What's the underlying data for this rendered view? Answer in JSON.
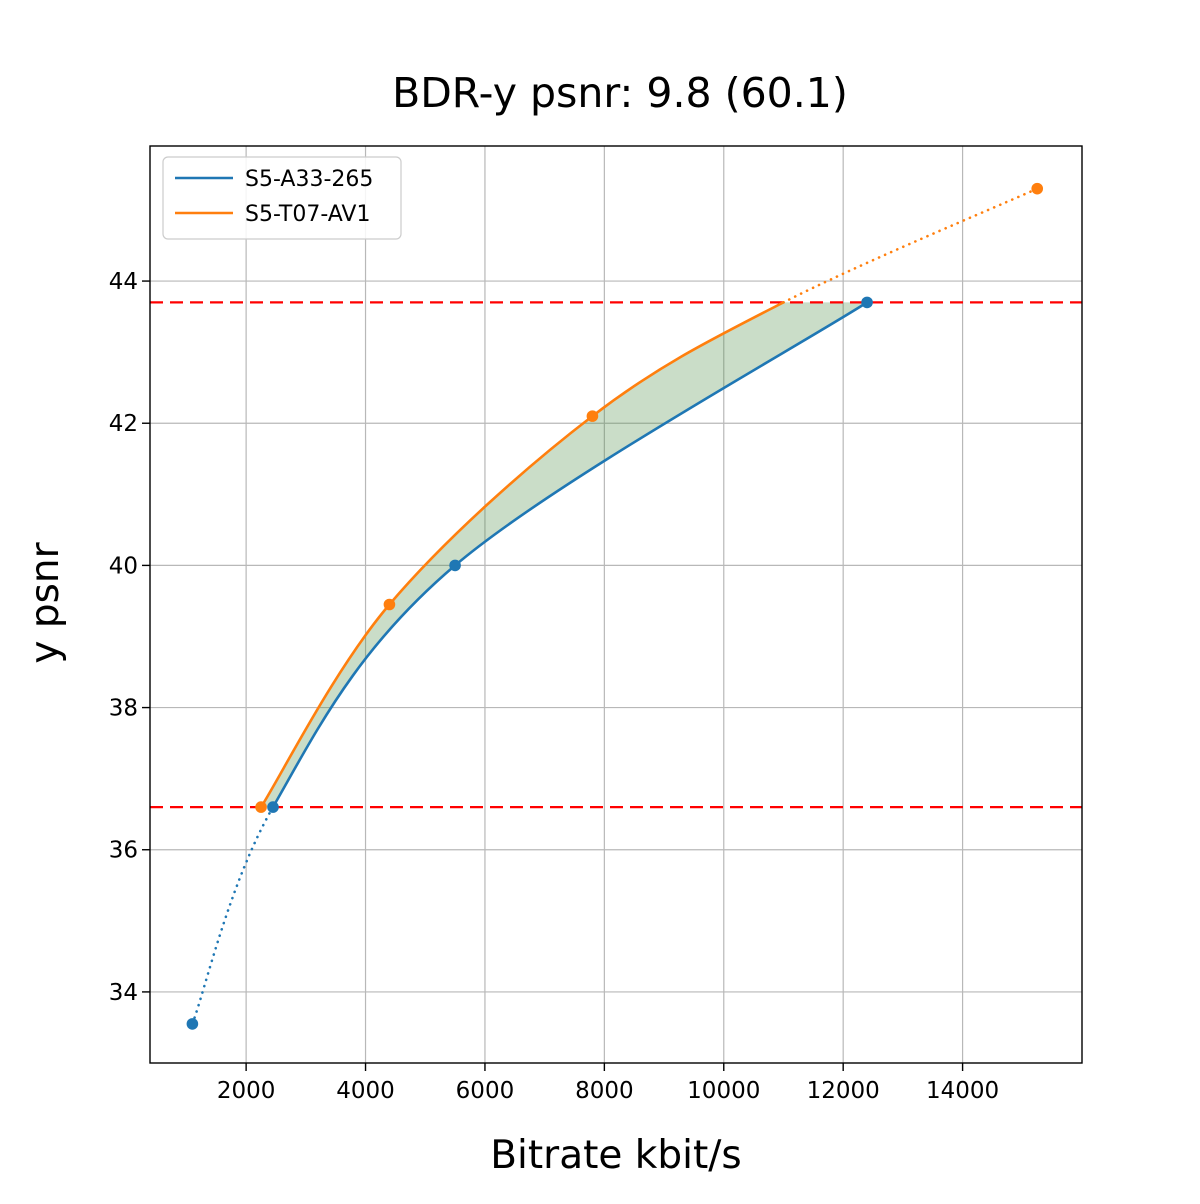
{
  "chart_data": {
    "type": "line",
    "title": "BDR-y psnr: 9.8 (60.1)",
    "xlabel": "Bitrate kbit/s",
    "ylabel": "y psnr",
    "xlim": [
      390,
      16000
    ],
    "ylim": [
      33.0,
      45.9
    ],
    "xticks": [
      2000,
      4000,
      6000,
      8000,
      10000,
      12000,
      14000
    ],
    "yticks": [
      34,
      36,
      38,
      40,
      42,
      44
    ],
    "grid": true,
    "legend": {
      "position": "upper-left"
    },
    "series": [
      {
        "name": "S5-A33-265",
        "color": "#1f77b4",
        "curve_points": [
          [
            1100,
            33.55
          ],
          [
            2450,
            36.6
          ],
          [
            5500,
            40.0
          ],
          [
            12400,
            43.7
          ]
        ],
        "marker_points": [
          [
            1100,
            33.55
          ],
          [
            2450,
            36.6
          ],
          [
            5500,
            40.0
          ],
          [
            12400,
            43.7
          ]
        ],
        "dotted_segments": [
          0
        ]
      },
      {
        "name": "S5-T07-AV1",
        "color": "#ff7f0e",
        "curve_points": [
          [
            2250,
            36.6
          ],
          [
            4400,
            39.45
          ],
          [
            7800,
            42.1
          ],
          [
            11000,
            43.7
          ],
          [
            15250,
            45.3
          ]
        ],
        "marker_points": [
          [
            2250,
            36.6
          ],
          [
            4400,
            39.45
          ],
          [
            7800,
            42.1
          ],
          [
            15250,
            45.3
          ]
        ],
        "dotted_segments": [
          3
        ]
      }
    ],
    "hlines": {
      "values": [
        36.6,
        43.7
      ],
      "color": "#ff0000",
      "style": "dashed"
    },
    "fill_between": {
      "color": "#4e8f4a",
      "opacity": 0.3,
      "upper": {
        "series": 1,
        "from": 0,
        "to": 3
      },
      "lower": {
        "series": 0,
        "from": 1,
        "to": 3
      },
      "psnr_overlap": [
        36.6,
        43.7
      ]
    }
  }
}
